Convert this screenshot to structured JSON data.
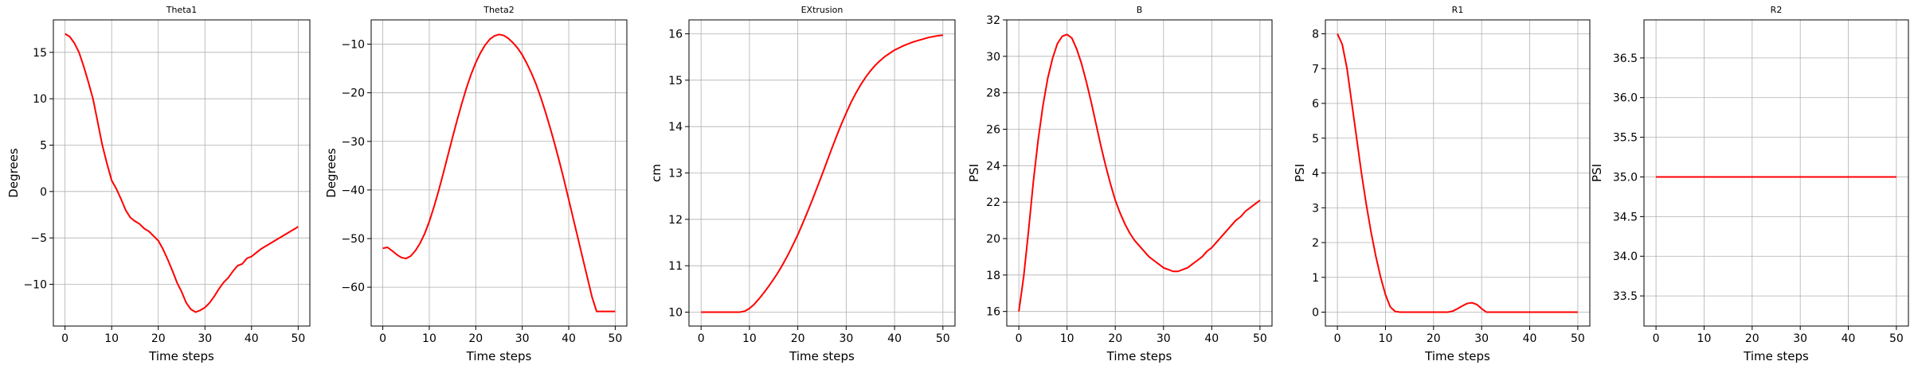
{
  "chart_data": [
    {
      "type": "line",
      "title": "Theta1",
      "xlabel": "Time steps",
      "ylabel": "Degrees",
      "xlim": [
        -2.5,
        52.5
      ],
      "ylim": [
        -14.5,
        18.5
      ],
      "xticks": [
        0,
        10,
        20,
        30,
        40,
        50
      ],
      "yticks": [
        -10,
        -5,
        0,
        5,
        10,
        15
      ],
      "ytick_labels": [
        "−10",
        "−5",
        "0",
        "5",
        "10",
        "15"
      ],
      "grid": true,
      "color": "#ff0000",
      "series": [
        {
          "x": [
            0,
            1,
            2,
            3,
            4,
            5,
            6,
            7,
            8,
            9,
            10,
            11,
            12,
            13,
            14,
            15,
            16,
            17,
            18,
            19,
            20,
            21,
            22,
            23,
            24,
            25,
            26,
            27,
            28,
            29,
            30,
            31,
            32,
            33,
            34,
            35,
            36,
            37,
            38,
            39,
            40,
            41,
            42,
            43,
            44,
            45,
            46,
            47,
            48,
            49,
            50
          ],
          "values": [
            17.0,
            16.7,
            16.0,
            15.0,
            13.5,
            11.8,
            10.0,
            7.5,
            5.0,
            3.0,
            1.2,
            0.3,
            -0.8,
            -2.0,
            -2.8,
            -3.2,
            -3.5,
            -4.0,
            -4.3,
            -4.8,
            -5.3,
            -6.2,
            -7.3,
            -8.5,
            -9.8,
            -10.8,
            -12.0,
            -12.7,
            -13.0,
            -12.8,
            -12.5,
            -12.0,
            -11.3,
            -10.5,
            -9.8,
            -9.3,
            -8.6,
            -8.0,
            -7.8,
            -7.2,
            -7.0,
            -6.6,
            -6.2,
            -5.9,
            -5.6,
            -5.3,
            -5.0,
            -4.7,
            -4.4,
            -4.1,
            -3.8
          ]
        }
      ]
    },
    {
      "type": "line",
      "title": "Theta2",
      "xlabel": "Time steps",
      "ylabel": "Degrees",
      "xlim": [
        -2.5,
        52.5
      ],
      "ylim": [
        -68,
        -5
      ],
      "xticks": [
        0,
        10,
        20,
        30,
        40,
        50
      ],
      "yticks": [
        -60,
        -50,
        -40,
        -30,
        -20,
        -10
      ],
      "ytick_labels": [
        "−60",
        "−50",
        "−40",
        "−30",
        "−20",
        "−10"
      ],
      "grid": true,
      "color": "#ff0000",
      "series": [
        {
          "x": [
            0,
            1,
            2,
            3,
            4,
            5,
            6,
            7,
            8,
            9,
            10,
            11,
            12,
            13,
            14,
            15,
            16,
            17,
            18,
            19,
            20,
            21,
            22,
            23,
            24,
            25,
            26,
            27,
            28,
            29,
            30,
            31,
            32,
            33,
            34,
            35,
            36,
            37,
            38,
            39,
            40,
            41,
            42,
            43,
            44,
            45,
            46,
            47,
            48,
            49,
            50
          ],
          "values": [
            -52.0,
            -51.8,
            -52.5,
            -53.3,
            -53.9,
            -54.1,
            -53.6,
            -52.5,
            -51.0,
            -49.0,
            -46.5,
            -43.5,
            -40.2,
            -36.6,
            -32.9,
            -29.2,
            -25.6,
            -22.2,
            -19.0,
            -16.2,
            -13.8,
            -11.8,
            -10.2,
            -9.0,
            -8.3,
            -8.0,
            -8.2,
            -8.8,
            -9.7,
            -10.8,
            -12.2,
            -14.0,
            -16.0,
            -18.3,
            -21.0,
            -24.0,
            -27.2,
            -30.6,
            -34.2,
            -38.0,
            -42.0,
            -46.0,
            -50.0,
            -54.0,
            -58.0,
            -62.0,
            -65.0,
            -65.0,
            -65.0,
            -65.0,
            -65.0
          ]
        }
      ]
    },
    {
      "type": "line",
      "title": "EXtrusion",
      "xlabel": "Time steps",
      "ylabel": "cm",
      "xlim": [
        -2.5,
        52.5
      ],
      "ylim": [
        9.7,
        16.3
      ],
      "xticks": [
        0,
        10,
        20,
        30,
        40,
        50
      ],
      "yticks": [
        10,
        11,
        12,
        13,
        14,
        15,
        16
      ],
      "ytick_labels": [
        "10",
        "11",
        "12",
        "13",
        "14",
        "15",
        "16"
      ],
      "grid": true,
      "color": "#ff0000",
      "series": [
        {
          "x": [
            0,
            1,
            2,
            3,
            4,
            5,
            6,
            7,
            8,
            9,
            10,
            11,
            12,
            13,
            14,
            15,
            16,
            17,
            18,
            19,
            20,
            21,
            22,
            23,
            24,
            25,
            26,
            27,
            28,
            29,
            30,
            31,
            32,
            33,
            34,
            35,
            36,
            37,
            38,
            39,
            40,
            41,
            42,
            43,
            44,
            45,
            46,
            47,
            48,
            49,
            50
          ],
          "values": [
            10.0,
            10.0,
            10.0,
            10.0,
            10.0,
            10.0,
            10.0,
            10.0,
            10.0,
            10.02,
            10.08,
            10.17,
            10.29,
            10.42,
            10.56,
            10.71,
            10.87,
            11.05,
            11.24,
            11.45,
            11.67,
            11.91,
            12.16,
            12.42,
            12.69,
            12.96,
            13.24,
            13.52,
            13.79,
            14.05,
            14.29,
            14.52,
            14.72,
            14.9,
            15.06,
            15.2,
            15.32,
            15.42,
            15.51,
            15.58,
            15.65,
            15.7,
            15.75,
            15.79,
            15.83,
            15.86,
            15.89,
            15.92,
            15.94,
            15.96,
            15.97
          ]
        }
      ]
    },
    {
      "type": "line",
      "title": "B",
      "xlabel": "Time steps",
      "ylabel": "PSI",
      "xlim": [
        -2.5,
        52.5
      ],
      "ylim": [
        15.2,
        32.0
      ],
      "xticks": [
        0,
        10,
        20,
        30,
        40,
        50
      ],
      "yticks": [
        16,
        18,
        20,
        22,
        24,
        26,
        28,
        30,
        32
      ],
      "ytick_labels": [
        "16",
        "18",
        "20",
        "22",
        "24",
        "26",
        "28",
        "30",
        "32"
      ],
      "grid": true,
      "color": "#ff0000",
      "series": [
        {
          "x": [
            0,
            1,
            2,
            3,
            4,
            5,
            6,
            7,
            8,
            9,
            10,
            11,
            12,
            13,
            14,
            15,
            16,
            17,
            18,
            19,
            20,
            21,
            22,
            23,
            24,
            25,
            26,
            27,
            28,
            29,
            30,
            31,
            32,
            33,
            34,
            35,
            36,
            37,
            38,
            39,
            40,
            41,
            42,
            43,
            44,
            45,
            46,
            47,
            48,
            49,
            50
          ],
          "values": [
            16.0,
            17.9,
            20.4,
            23.1,
            25.4,
            27.3,
            28.8,
            29.9,
            30.7,
            31.1,
            31.2,
            31.0,
            30.4,
            29.6,
            28.6,
            27.5,
            26.3,
            25.1,
            24.0,
            23.0,
            22.1,
            21.4,
            20.8,
            20.3,
            19.9,
            19.6,
            19.3,
            19.0,
            18.8,
            18.6,
            18.4,
            18.3,
            18.2,
            18.2,
            18.3,
            18.4,
            18.6,
            18.8,
            19.0,
            19.3,
            19.5,
            19.8,
            20.1,
            20.4,
            20.7,
            21.0,
            21.2,
            21.5,
            21.7,
            21.9,
            22.1
          ]
        }
      ]
    },
    {
      "type": "line",
      "title": "R1",
      "xlabel": "Time steps",
      "ylabel": "PSI",
      "xlim": [
        -2.5,
        52.5
      ],
      "ylim": [
        -0.4,
        8.4
      ],
      "xticks": [
        0,
        10,
        20,
        30,
        40,
        50
      ],
      "yticks": [
        0,
        1,
        2,
        3,
        4,
        5,
        6,
        7,
        8
      ],
      "ytick_labels": [
        "0",
        "1",
        "2",
        "3",
        "4",
        "5",
        "6",
        "7",
        "8"
      ],
      "grid": true,
      "color": "#ff0000",
      "series": [
        {
          "x": [
            0,
            1,
            2,
            3,
            4,
            5,
            6,
            7,
            8,
            9,
            10,
            11,
            12,
            13,
            14,
            15,
            16,
            17,
            18,
            19,
            20,
            21,
            22,
            23,
            24,
            25,
            26,
            27,
            28,
            29,
            30,
            31,
            32,
            33,
            34,
            35,
            36,
            37,
            38,
            39,
            40,
            41,
            42,
            43,
            44,
            45,
            46,
            47,
            48,
            49,
            50
          ],
          "values": [
            8.0,
            7.7,
            7.0,
            6.0,
            5.0,
            4.0,
            3.1,
            2.3,
            1.6,
            1.0,
            0.5,
            0.15,
            0.02,
            0.0,
            0.0,
            0.0,
            0.0,
            0.0,
            0.0,
            0.0,
            0.0,
            0.0,
            0.0,
            0.0,
            0.03,
            0.1,
            0.18,
            0.25,
            0.27,
            0.22,
            0.1,
            0.0,
            0.0,
            0.0,
            0.0,
            0.0,
            0.0,
            0.0,
            0.0,
            0.0,
            0.0,
            0.0,
            0.0,
            0.0,
            0.0,
            0.0,
            0.0,
            0.0,
            0.0,
            0.0,
            0.0
          ]
        }
      ]
    },
    {
      "type": "line",
      "title": "R2",
      "xlabel": "Time steps",
      "ylabel": "PSI",
      "xlim": [
        -2.5,
        52.5
      ],
      "ylim": [
        33.12,
        36.98
      ],
      "xticks": [
        0,
        10,
        20,
        30,
        40,
        50
      ],
      "yticks": [
        33.5,
        34.0,
        34.5,
        35.0,
        35.5,
        36.0,
        36.5
      ],
      "ytick_labels": [
        "33.5",
        "34.0",
        "34.5",
        "35.0",
        "35.5",
        "36.0",
        "36.5"
      ],
      "grid": true,
      "color": "#ff0000",
      "series": [
        {
          "x": [
            0,
            50
          ],
          "values": [
            35.0,
            35.0
          ]
        }
      ]
    }
  ]
}
